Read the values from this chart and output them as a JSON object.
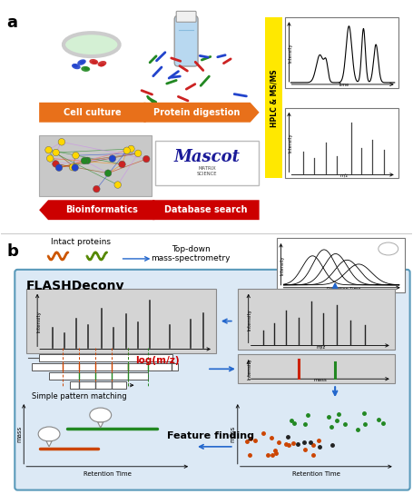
{
  "fig_width": 4.55,
  "fig_height": 5.44,
  "dpi": 100,
  "bg_color": "#ffffff",
  "panel_a_label": "a",
  "panel_b_label": "b",
  "cell_culture_label": "Cell culture",
  "protein_digestion_label": "Protein digestion",
  "bioinformatics_label": "Bioinformatics",
  "database_search_label": "Database search",
  "hplc_label": "HPLC & MS/MS",
  "orange_arrow_color": "#E8701A",
  "red_arrow_color": "#CC0000",
  "yellow_bar_color": "#FFD700",
  "intact_proteins_label": "Intact proteins",
  "top_down_label": "Top-down\nmass-spectrometry",
  "flash_label": "FLASHDeconv",
  "logmz_label": "log(m/z)",
  "simple_pattern_label": "Simple pattern matching",
  "feature_finding_label": "Feature finding",
  "mz_label": "m/z",
  "mass_label": "mass",
  "intensity_label": "Intensity",
  "retention_time_label": "Retention Time",
  "time_label": "Time",
  "flash_bg_color": "#dce9f5",
  "flash_border_color": "#5a9aba"
}
